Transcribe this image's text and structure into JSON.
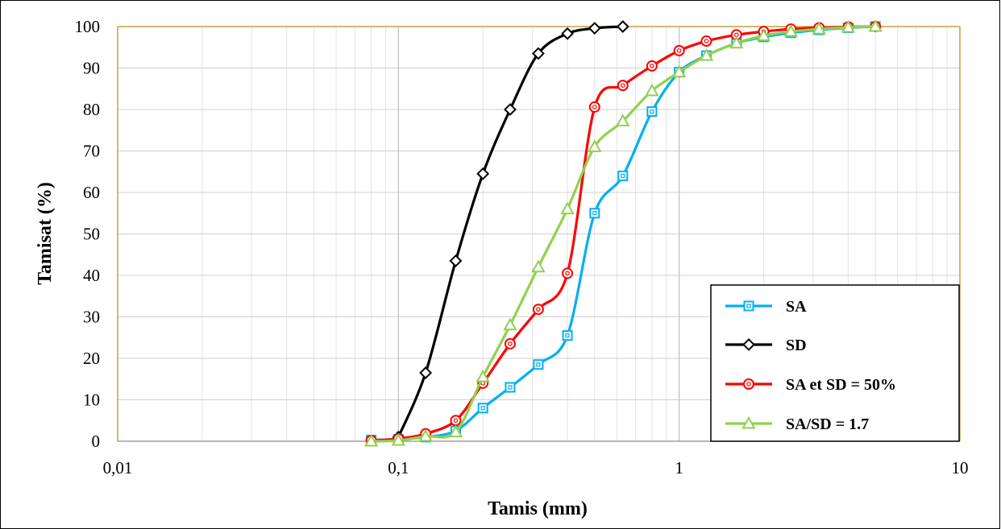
{
  "chart_data": {
    "type": "line",
    "xlabel": "Tamis (mm)",
    "ylabel": "Tamisat (%)",
    "x_scale": "log",
    "xlim": [
      0.01,
      10
    ],
    "ylim": [
      0,
      100
    ],
    "x_ticks": [
      {
        "value": 0.01,
        "label": "0,01"
      },
      {
        "value": 0.1,
        "label": "0,1"
      },
      {
        "value": 1,
        "label": "1"
      },
      {
        "value": 10,
        "label": "10"
      }
    ],
    "y_ticks": [
      0,
      10,
      20,
      30,
      40,
      50,
      60,
      70,
      80,
      90,
      100
    ],
    "grid": true,
    "legend_position": "bottom-right",
    "series": [
      {
        "name": "SA",
        "color": "#00b0f0",
        "marker": "square",
        "x": [
          0.08,
          0.1,
          0.125,
          0.16,
          0.2,
          0.25,
          0.315,
          0.4,
          0.5,
          0.63,
          0.8,
          1,
          1.25,
          1.6,
          2,
          2.5,
          3.15,
          4,
          5
        ],
        "y": [
          0.3,
          0.5,
          1,
          2.5,
          8,
          13,
          18.5,
          25.5,
          55,
          64,
          79.5,
          89,
          93,
          96,
          97.5,
          98.5,
          99.2,
          99.7,
          100
        ]
      },
      {
        "name": "SD",
        "color": "#000000",
        "marker": "diamond",
        "x": [
          0.1,
          0.125,
          0.16,
          0.2,
          0.25,
          0.315,
          0.4,
          0.5,
          0.63
        ],
        "y": [
          1,
          16.5,
          43.5,
          64.5,
          80,
          93.5,
          98.3,
          99.6,
          100
        ]
      },
      {
        "name": "SA et SD = 50%",
        "color": "#ff0000",
        "marker": "circle",
        "x": [
          0.08,
          0.1,
          0.125,
          0.16,
          0.2,
          0.25,
          0.315,
          0.4,
          0.5,
          0.63,
          0.8,
          1,
          1.25,
          1.6,
          2,
          2.5,
          3.15,
          4,
          5
        ],
        "y": [
          0.2,
          0.6,
          1.8,
          5,
          14,
          23.5,
          31.8,
          40.5,
          80.6,
          85.8,
          90.5,
          94.2,
          96.5,
          98,
          98.8,
          99.4,
          99.7,
          99.9,
          100
        ]
      },
      {
        "name": "SA/SD = 1.7",
        "color": "#92d050",
        "marker": "triangle",
        "x": [
          0.08,
          0.1,
          0.125,
          0.16,
          0.2,
          0.25,
          0.315,
          0.4,
          0.5,
          0.63,
          0.8,
          1,
          1.25,
          1.6,
          2,
          2.5,
          3.15,
          4,
          5
        ],
        "y": [
          0,
          0.2,
          1.2,
          2.2,
          15.5,
          28,
          42,
          56,
          71,
          77.2,
          84.5,
          89,
          93,
          96,
          97.8,
          98.8,
          99.4,
          99.8,
          100
        ]
      }
    ]
  }
}
